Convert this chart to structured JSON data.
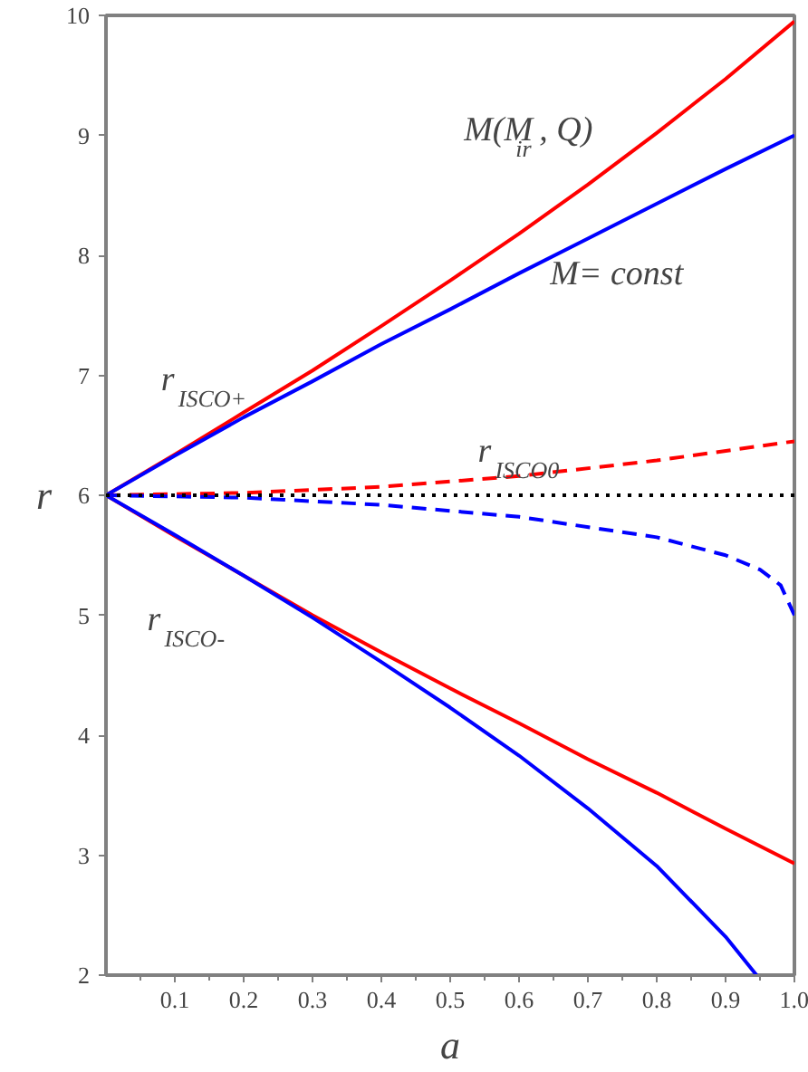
{
  "chart_data": {
    "type": "line",
    "xlabel": "a",
    "ylabel": "r",
    "xlim": [
      0,
      1
    ],
    "ylim": [
      2,
      10
    ],
    "xticks": [
      0.1,
      0.2,
      0.3,
      0.4,
      0.5,
      0.6,
      0.7,
      0.8,
      0.9,
      {
        "value": 1.0,
        "label": "1.0"
      }
    ],
    "yticks": [
      2,
      3,
      4,
      5,
      6,
      7,
      8,
      9,
      10
    ],
    "grid": false,
    "series": [
      {
        "color": "#ff0000",
        "line_style": "solid",
        "x": [
          0,
          0.1,
          0.2,
          0.3,
          0.4,
          0.5,
          0.6,
          0.7,
          0.8,
          0.9,
          1.0
        ],
        "values": [
          6,
          6.34,
          6.69,
          7.04,
          7.41,
          7.79,
          8.18,
          8.59,
          9.02,
          9.47,
          9.95
        ]
      },
      {
        "color": "#0000ff",
        "line_style": "solid",
        "x": [
          0,
          0.1,
          0.2,
          0.3,
          0.4,
          0.5,
          0.6,
          0.7,
          0.8,
          0.9,
          1.0
        ],
        "values": [
          6,
          6.33,
          6.65,
          6.95,
          7.26,
          7.55,
          7.85,
          8.14,
          8.43,
          8.72,
          9
        ]
      },
      {
        "color": "#ff0000",
        "line_style": "dashed",
        "x": [
          0,
          0.2,
          0.4,
          0.6,
          0.8,
          1.0
        ],
        "values": [
          6,
          6.02,
          6.07,
          6.16,
          6.29,
          6.45
        ]
      },
      {
        "color": "#0000ff",
        "line_style": "dashed",
        "x": [
          0,
          0.2,
          0.4,
          0.6,
          0.8,
          0.9,
          0.95,
          0.98,
          1.0
        ],
        "values": [
          6,
          5.98,
          5.92,
          5.82,
          5.65,
          5.5,
          5.38,
          5.25,
          5.0
        ]
      },
      {
        "color": "#ff0000",
        "line_style": "solid",
        "x": [
          0,
          0.1,
          0.2,
          0.3,
          0.4,
          0.5,
          0.6,
          0.7,
          0.8,
          0.9,
          1.0
        ],
        "values": [
          6,
          5.66,
          5.33,
          5.0,
          4.69,
          4.39,
          4.1,
          3.8,
          3.52,
          3.22,
          2.93
        ]
      },
      {
        "color": "#0000ff",
        "line_style": "solid",
        "x": [
          0,
          0.1,
          0.2,
          0.3,
          0.4,
          0.5,
          0.6,
          0.7,
          0.8,
          0.9,
          0.945
        ],
        "values": [
          6,
          5.67,
          5.33,
          4.98,
          4.61,
          4.23,
          3.83,
          3.39,
          2.91,
          2.32,
          2.0
        ]
      }
    ],
    "ref_lines": [
      {
        "axis": "y",
        "value": 6,
        "color": "#000000",
        "line_style": "dotted"
      }
    ],
    "annotations": [
      "M(M$_{ir}$, Q)",
      "M= const",
      "r$_{ISCO+}$",
      "r$_{ISCO0}$",
      "r$_{ISCO-}$"
    ]
  }
}
